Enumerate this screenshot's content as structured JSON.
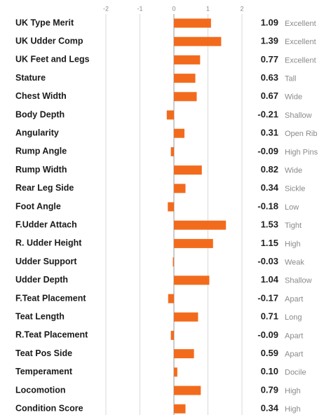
{
  "chart_data": {
    "type": "bar",
    "orientation": "horizontal",
    "categories": [
      "UK Type Merit",
      "UK Udder Comp",
      "UK Feet and Legs",
      "Stature",
      "Chest Width",
      "Body Depth",
      "Angularity",
      "Rump Angle",
      "Rump Width",
      "Rear Leg Side",
      "Foot Angle",
      "F.Udder Attach",
      "R. Udder Height",
      "Udder Support",
      "Udder Depth",
      "F.Teat Placement",
      "Teat Length",
      "R.Teat Placement",
      "Teat Pos Side",
      "Temperament",
      "Locomotion",
      "Condition Score"
    ],
    "values": [
      1.09,
      1.39,
      0.77,
      0.63,
      0.67,
      -0.21,
      0.31,
      -0.09,
      0.82,
      0.34,
      -0.18,
      1.53,
      1.15,
      -0.03,
      1.04,
      -0.17,
      0.71,
      -0.09,
      0.59,
      0.1,
      0.79,
      0.34
    ],
    "value_labels": [
      "1.09",
      "1.39",
      "0.77",
      "0.63",
      "0.67",
      "-0.21",
      "0.31",
      "-0.09",
      "0.82",
      "0.34",
      "-0.18",
      "1.53",
      "1.15",
      "-0.03",
      "1.04",
      "-0.17",
      "0.71",
      "-0.09",
      "0.59",
      "0.10",
      "0.79",
      "0.34"
    ],
    "ratings": [
      "Excellent",
      "Excellent",
      "Excellent",
      "Tall",
      "Wide",
      "Shallow",
      "Open Rib",
      "High Pins",
      "Wide",
      "Sickle",
      "Low",
      "Tight",
      "High",
      "Weak",
      "Shallow",
      "Apart",
      "Long",
      "Apart",
      "Apart",
      "Docile",
      "High",
      "High"
    ],
    "color": "#f26b1d",
    "xlim": [
      -2,
      2
    ],
    "xticks": [
      -2,
      -1,
      0,
      1,
      2
    ],
    "grid": true
  }
}
